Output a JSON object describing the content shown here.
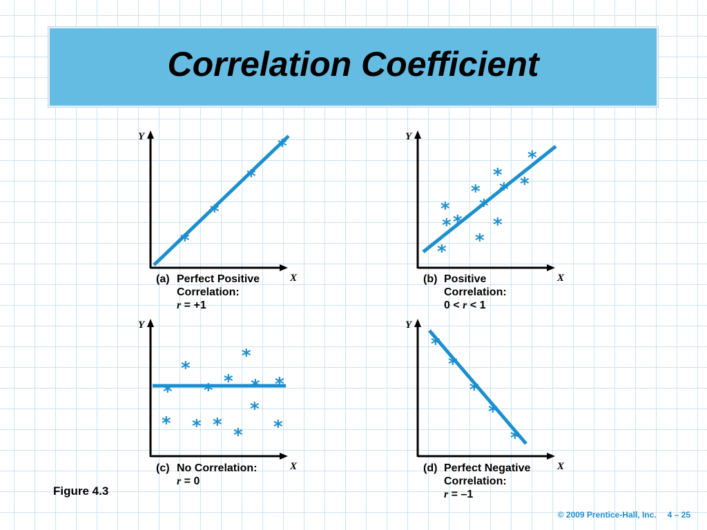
{
  "title": "Correlation Coefficient",
  "figure_label": "Figure 4.3",
  "footer": {
    "copyright": "© 2009 Prentice-Hall, Inc.",
    "page": "4 – 25"
  },
  "axis": {
    "x": "X",
    "y": "Y"
  },
  "panels": {
    "a": {
      "tag": "(a)",
      "line1": "Perfect Positive",
      "line2": "Correlation:",
      "r_label": "r",
      "r_rest": " = +1"
    },
    "b": {
      "tag": "(b)",
      "line1": "Positive",
      "line2": "Correlation:",
      "r_pre": "0 < ",
      "r_label": "r",
      "r_rest": " < 1"
    },
    "c": {
      "tag": "(c)",
      "line1": "No Correlation:",
      "r_label": "r",
      "r_rest": " = 0"
    },
    "d": {
      "tag": "(d)",
      "line1": "Perfect Negative",
      "line2": "Correlation:",
      "r_label": "r",
      "r_rest": " = –1"
    }
  },
  "colors": {
    "accent": "#1b8fd0",
    "title_bg": "#64bce3",
    "grid": "#c9e3f3"
  }
}
